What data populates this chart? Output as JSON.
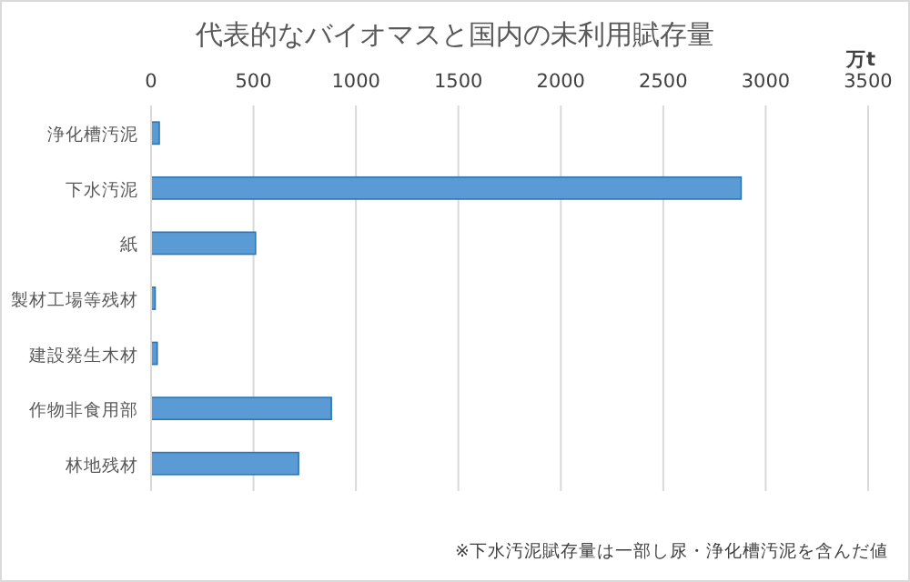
{
  "chart_data": {
    "type": "bar",
    "orientation": "horizontal",
    "title": "代表的なバイオマスと国内の未利用賦存量",
    "xlabel": "万t",
    "categories": [
      "浄化槽汚泥",
      "下水汚泥",
      "紙",
      "製材工場等残材",
      "建設発生木材",
      "作物非食用部",
      "林地残材"
    ],
    "series": [
      {
        "color": "#5b9bd5",
        "values": [
          40,
          2880,
          510,
          20,
          30,
          880,
          720
        ]
      }
    ],
    "xlim": [
      0,
      3500
    ],
    "xticks": [
      0,
      500,
      1000,
      1500,
      2000,
      2500,
      3000,
      3500
    ],
    "grid": "x",
    "annotations": [
      "※下水汚泥賦存量は一部し尿・浄化槽汚泥を含んだ値"
    ]
  }
}
